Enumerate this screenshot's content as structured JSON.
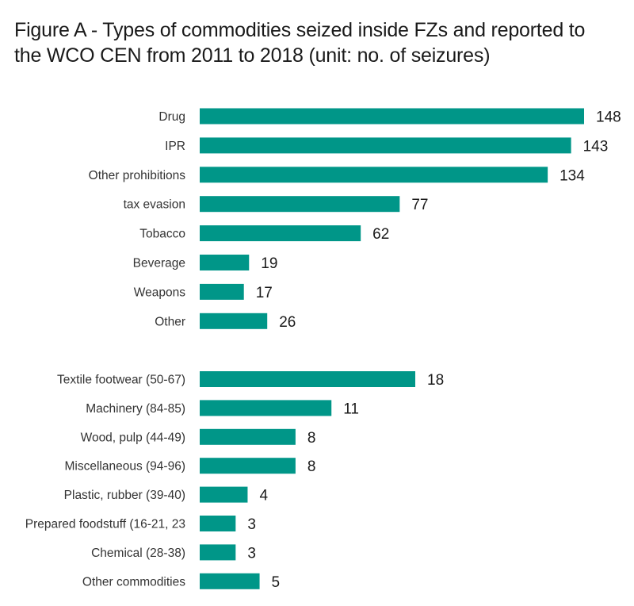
{
  "title_lines": [
    "Figure A - Types of commodities seized inside FZs and reported to",
    "the WCO CEN from 2011 to 2018 (unit: no. of seizures)"
  ],
  "colors": {
    "bar": "#009688"
  },
  "chart_data": [
    {
      "type": "bar",
      "orientation": "horizontal",
      "categories": [
        "Drug",
        "IPR",
        "Other prohibitions",
        "tax evasion",
        "Tobacco",
        "Beverage",
        "Weapons",
        "Other"
      ],
      "values": [
        148,
        143,
        134,
        77,
        62,
        19,
        17,
        26
      ],
      "xlim": [
        0,
        148
      ]
    },
    {
      "type": "bar",
      "orientation": "horizontal",
      "categories": [
        "Textile footwear (50-67)",
        "Machinery (84-85)",
        "Wood, pulp (44-49)",
        "Miscellaneous (94-96)",
        "Plastic, rubber (39-40)",
        "Prepared foodstuff (16-21, 23",
        "Chemical (28-38)",
        "Other commodities"
      ],
      "values": [
        18,
        11,
        8,
        8,
        4,
        3,
        3,
        5
      ],
      "xlim": [
        0,
        18
      ]
    }
  ]
}
